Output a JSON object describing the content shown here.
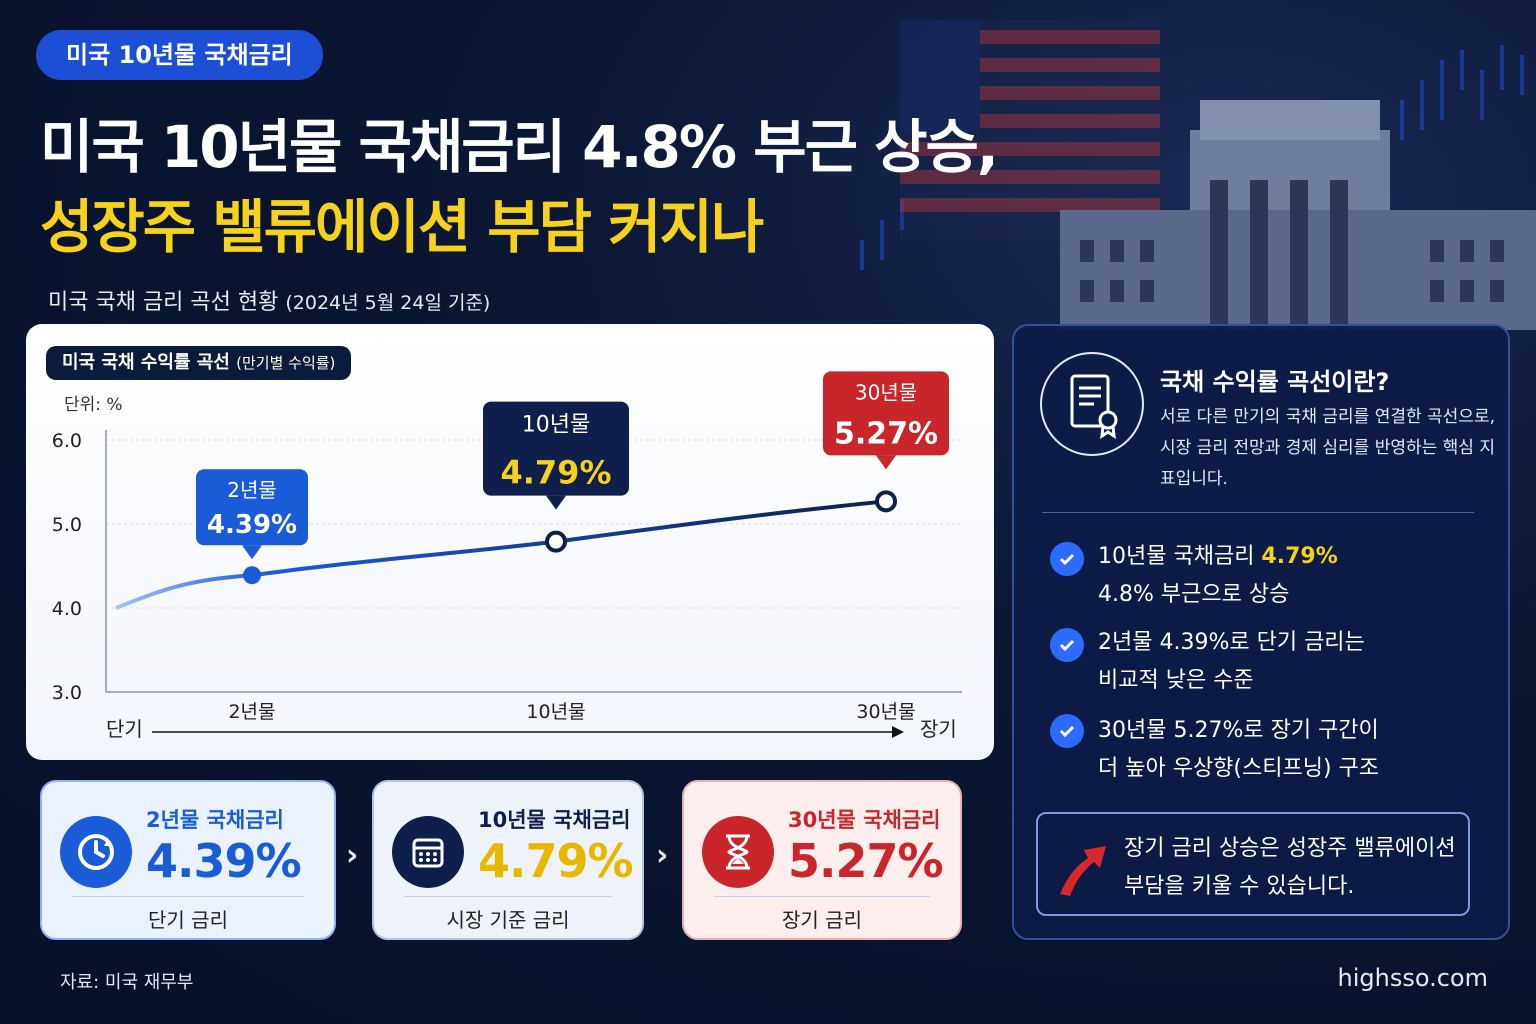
{
  "tag": "미국 10년물 국채금리",
  "headline": {
    "line1": "미국 10년물 국채금리 4.8% 부근 상승,",
    "line2": "성장주 밸류에이션 부담 커지나"
  },
  "subtitle": {
    "main": "미국 국채 금리 곡선 현황",
    "date": "(2024년 5월 24일 기준)"
  },
  "chart_panel": {
    "pill_main": "미국 국채 수익률 곡선",
    "pill_sub": "(만기별 수익률)",
    "unit": "단위: %",
    "axis_short": "단기",
    "axis_long": "장기"
  },
  "chart_data": {
    "type": "line",
    "title": "미국 국채 수익률 곡선",
    "x": [
      "2년물",
      "10년물",
      "30년물"
    ],
    "values": [
      4.39,
      4.79,
      5.27
    ],
    "value_labels": [
      "4.39%",
      "4.79%",
      "5.27%"
    ],
    "yticks": [
      "6.0",
      "5.0",
      "4.0",
      "3.0"
    ],
    "ylim": [
      3.0,
      6.0
    ],
    "grid": true,
    "colors": {
      "short": "#1a5bd8",
      "mid": "#0d1f4a",
      "long": "#c8262b",
      "line": "#1a3a9a"
    }
  },
  "summary": [
    {
      "label": "2년물 국채금리",
      "value": "4.39%",
      "sub": "단기 금리",
      "icon": "clock-refresh-icon",
      "color": "#1a5bd8"
    },
    {
      "label": "10년물 국채금리",
      "value": "4.79%",
      "sub": "시장 기준 금리",
      "icon": "calendar-icon",
      "color": "#e8b800"
    },
    {
      "label": "30년물 국채금리",
      "value": "5.27%",
      "sub": "장기 금리",
      "icon": "hourglass-icon",
      "color": "#c8262b"
    }
  ],
  "panel": {
    "title": "국채 수익률 곡선이란?",
    "desc": "서로 다른 만기의 국채 금리를 연결한 곡선으로, 시장 금리 전망과 경제 심리를 반영하는 핵심 지표입니다.",
    "points": [
      {
        "a": "10년물 국채금리 ",
        "hl": "4.79%",
        "b": "4.8% 부근으로 상승"
      },
      {
        "a": "2년물 4.39%로 단기 금리는",
        "hl": "",
        "b": "비교적 낮은 수준"
      },
      {
        "a": "30년물 5.27%로 장기 구간이",
        "hl": "",
        "b": "더 높아 우상향(스티프닝) 구조"
      }
    ],
    "callout": "장기 금리 상승은 성장주 밸류에이션 부담을 키울 수 있습니다."
  },
  "footer": {
    "source": "자료: 미국 재무부",
    "site": "highsso.com"
  }
}
